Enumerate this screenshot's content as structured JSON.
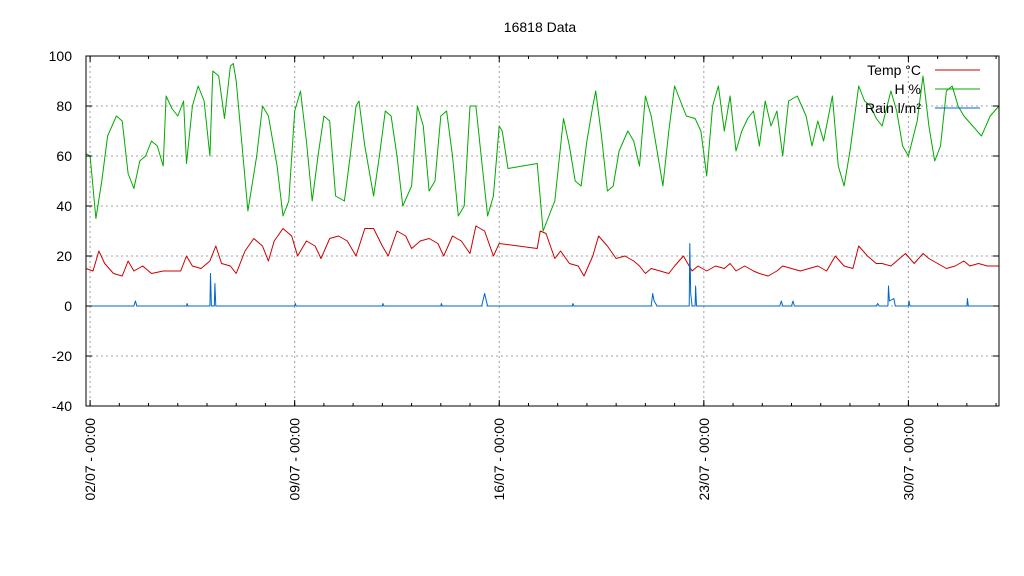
{
  "chart_data": {
    "type": "line",
    "title": "16818 Data",
    "xlabel": "",
    "ylabel": "",
    "ylim": [
      -40,
      100
    ],
    "yticks": [
      -40,
      -20,
      0,
      20,
      40,
      60,
      80,
      100
    ],
    "xlim_days": [
      0.86,
      32.1
    ],
    "xticks": [
      {
        "label": "02/07 - 00:00",
        "day": 1
      },
      {
        "label": "09/07 - 00:00",
        "day": 8
      },
      {
        "label": "16/07 - 00:00",
        "day": 15
      },
      {
        "label": "23/07 - 00:00",
        "day": 22
      },
      {
        "label": "30/07 - 00:00",
        "day": 29
      }
    ],
    "grid": true,
    "legend": "top-right",
    "series": [
      {
        "name": "Temp °C",
        "color": "#cc0000",
        "points": [
          [
            0.86,
            15
          ],
          [
            1.1,
            14
          ],
          [
            1.3,
            22
          ],
          [
            1.5,
            17
          ],
          [
            1.8,
            13
          ],
          [
            2.1,
            12
          ],
          [
            2.3,
            18
          ],
          [
            2.5,
            14
          ],
          [
            2.8,
            16
          ],
          [
            3.1,
            13
          ],
          [
            3.5,
            14
          ],
          [
            4.1,
            14
          ],
          [
            4.3,
            20
          ],
          [
            4.5,
            16
          ],
          [
            4.8,
            15
          ],
          [
            5.1,
            18
          ],
          [
            5.3,
            24
          ],
          [
            5.5,
            17
          ],
          [
            5.8,
            16
          ],
          [
            6.0,
            13
          ],
          [
            6.3,
            22
          ],
          [
            6.6,
            27
          ],
          [
            6.9,
            24
          ],
          [
            7.1,
            18
          ],
          [
            7.3,
            26
          ],
          [
            7.6,
            31
          ],
          [
            7.9,
            28
          ],
          [
            8.1,
            20
          ],
          [
            8.4,
            26
          ],
          [
            8.7,
            24
          ],
          [
            8.9,
            19
          ],
          [
            9.2,
            27
          ],
          [
            9.5,
            28
          ],
          [
            9.8,
            26
          ],
          [
            10.1,
            20
          ],
          [
            10.4,
            31
          ],
          [
            10.7,
            31
          ],
          [
            11.0,
            24
          ],
          [
            11.2,
            20
          ],
          [
            11.5,
            30
          ],
          [
            11.8,
            28
          ],
          [
            12.0,
            23
          ],
          [
            12.3,
            26
          ],
          [
            12.6,
            27
          ],
          [
            12.9,
            25
          ],
          [
            13.1,
            20
          ],
          [
            13.4,
            28
          ],
          [
            13.7,
            26
          ],
          [
            14.0,
            21
          ],
          [
            14.2,
            32
          ],
          [
            14.5,
            30
          ],
          [
            14.8,
            20
          ],
          [
            15.0,
            25
          ],
          [
            16.3,
            23
          ],
          [
            16.4,
            30
          ],
          [
            16.6,
            29
          ],
          [
            16.9,
            19
          ],
          [
            17.1,
            22
          ],
          [
            17.4,
            17
          ],
          [
            17.7,
            16
          ],
          [
            17.9,
            12
          ],
          [
            18.2,
            20
          ],
          [
            18.4,
            28
          ],
          [
            18.7,
            24
          ],
          [
            19.0,
            19
          ],
          [
            19.3,
            20
          ],
          [
            19.6,
            18
          ],
          [
            19.8,
            16
          ],
          [
            20.0,
            13
          ],
          [
            20.2,
            15
          ],
          [
            20.5,
            14
          ],
          [
            20.8,
            13
          ],
          [
            21.0,
            16
          ],
          [
            21.3,
            20
          ],
          [
            21.6,
            14
          ],
          [
            21.8,
            16
          ],
          [
            22.1,
            14
          ],
          [
            22.4,
            16
          ],
          [
            22.7,
            15
          ],
          [
            22.9,
            17
          ],
          [
            23.1,
            14
          ],
          [
            23.4,
            16
          ],
          [
            23.7,
            14
          ],
          [
            23.9,
            13
          ],
          [
            24.2,
            12
          ],
          [
            24.5,
            14
          ],
          [
            24.7,
            16
          ],
          [
            25.0,
            15
          ],
          [
            25.3,
            14
          ],
          [
            25.6,
            15
          ],
          [
            25.9,
            16
          ],
          [
            26.2,
            14
          ],
          [
            26.5,
            20
          ],
          [
            26.8,
            16
          ],
          [
            27.1,
            15
          ],
          [
            27.3,
            24
          ],
          [
            27.6,
            20
          ],
          [
            27.9,
            17
          ],
          [
            28.1,
            17
          ],
          [
            28.4,
            16
          ],
          [
            28.7,
            19
          ],
          [
            28.9,
            21
          ],
          [
            29.2,
            17
          ],
          [
            29.5,
            21
          ],
          [
            29.7,
            19
          ],
          [
            30.0,
            17
          ],
          [
            30.3,
            15
          ],
          [
            30.6,
            16
          ],
          [
            30.9,
            18
          ],
          [
            31.1,
            16
          ],
          [
            31.4,
            17
          ],
          [
            31.7,
            16
          ],
          [
            32.0,
            16
          ],
          [
            32.1,
            16
          ]
        ]
      },
      {
        "name": "H %",
        "color": "#00aa00",
        "points": [
          [
            0.86,
            61
          ],
          [
            1.0,
            60
          ],
          [
            1.2,
            35
          ],
          [
            1.4,
            50
          ],
          [
            1.6,
            68
          ],
          [
            1.9,
            76
          ],
          [
            2.1,
            74
          ],
          [
            2.3,
            53
          ],
          [
            2.5,
            47
          ],
          [
            2.7,
            58
          ],
          [
            2.9,
            60
          ],
          [
            3.1,
            66
          ],
          [
            3.3,
            64
          ],
          [
            3.5,
            56
          ],
          [
            3.6,
            84
          ],
          [
            3.8,
            79
          ],
          [
            4.0,
            76
          ],
          [
            4.2,
            82
          ],
          [
            4.3,
            57
          ],
          [
            4.5,
            80
          ],
          [
            4.7,
            88
          ],
          [
            4.9,
            82
          ],
          [
            5.1,
            60
          ],
          [
            5.2,
            94
          ],
          [
            5.4,
            92
          ],
          [
            5.6,
            75
          ],
          [
            5.8,
            96
          ],
          [
            5.9,
            97
          ],
          [
            6.0,
            90
          ],
          [
            6.2,
            64
          ],
          [
            6.4,
            38
          ],
          [
            6.7,
            60
          ],
          [
            6.9,
            80
          ],
          [
            7.1,
            76
          ],
          [
            7.4,
            56
          ],
          [
            7.6,
            36
          ],
          [
            7.8,
            42
          ],
          [
            8.0,
            78
          ],
          [
            8.2,
            86
          ],
          [
            8.4,
            66
          ],
          [
            8.6,
            42
          ],
          [
            8.8,
            60
          ],
          [
            9.0,
            76
          ],
          [
            9.2,
            74
          ],
          [
            9.4,
            44
          ],
          [
            9.7,
            42
          ],
          [
            9.9,
            60
          ],
          [
            10.1,
            80
          ],
          [
            10.2,
            82
          ],
          [
            10.4,
            64
          ],
          [
            10.7,
            44
          ],
          [
            10.9,
            60
          ],
          [
            11.1,
            78
          ],
          [
            11.3,
            76
          ],
          [
            11.5,
            60
          ],
          [
            11.7,
            40
          ],
          [
            12.0,
            48
          ],
          [
            12.2,
            80
          ],
          [
            12.4,
            72
          ],
          [
            12.6,
            46
          ],
          [
            12.8,
            50
          ],
          [
            13.0,
            76
          ],
          [
            13.2,
            78
          ],
          [
            13.4,
            60
          ],
          [
            13.6,
            36
          ],
          [
            13.8,
            40
          ],
          [
            14.0,
            80
          ],
          [
            14.2,
            80
          ],
          [
            14.4,
            58
          ],
          [
            14.6,
            36
          ],
          [
            14.8,
            44
          ],
          [
            15.0,
            72
          ],
          [
            15.1,
            70
          ],
          [
            15.3,
            55
          ],
          [
            16.3,
            57
          ],
          [
            16.5,
            30
          ],
          [
            16.7,
            36
          ],
          [
            16.9,
            42
          ],
          [
            17.2,
            75
          ],
          [
            17.4,
            64
          ],
          [
            17.6,
            50
          ],
          [
            17.8,
            48
          ],
          [
            18.0,
            66
          ],
          [
            18.2,
            80
          ],
          [
            18.3,
            86
          ],
          [
            18.5,
            68
          ],
          [
            18.7,
            46
          ],
          [
            18.9,
            48
          ],
          [
            19.1,
            62
          ],
          [
            19.4,
            70
          ],
          [
            19.6,
            66
          ],
          [
            19.8,
            56
          ],
          [
            20.0,
            84
          ],
          [
            20.2,
            76
          ],
          [
            20.4,
            62
          ],
          [
            20.6,
            48
          ],
          [
            20.8,
            70
          ],
          [
            21.0,
            88
          ],
          [
            21.2,
            82
          ],
          [
            21.4,
            76
          ],
          [
            21.7,
            75
          ],
          [
            21.9,
            70
          ],
          [
            22.1,
            52
          ],
          [
            22.3,
            80
          ],
          [
            22.5,
            88
          ],
          [
            22.7,
            70
          ],
          [
            22.9,
            84
          ],
          [
            23.1,
            62
          ],
          [
            23.3,
            70
          ],
          [
            23.5,
            75
          ],
          [
            23.7,
            78
          ],
          [
            23.9,
            64
          ],
          [
            24.1,
            82
          ],
          [
            24.3,
            72
          ],
          [
            24.5,
            78
          ],
          [
            24.7,
            60
          ],
          [
            24.9,
            82
          ],
          [
            25.2,
            84
          ],
          [
            25.5,
            76
          ],
          [
            25.7,
            64
          ],
          [
            25.9,
            74
          ],
          [
            26.1,
            66
          ],
          [
            26.4,
            84
          ],
          [
            26.6,
            56
          ],
          [
            26.8,
            48
          ],
          [
            27.0,
            62
          ],
          [
            27.3,
            88
          ],
          [
            27.5,
            82
          ],
          [
            27.7,
            80
          ],
          [
            27.9,
            75
          ],
          [
            28.1,
            72
          ],
          [
            28.4,
            86
          ],
          [
            28.6,
            78
          ],
          [
            28.8,
            64
          ],
          [
            29.0,
            60
          ],
          [
            29.3,
            74
          ],
          [
            29.5,
            92
          ],
          [
            29.7,
            72
          ],
          [
            29.9,
            58
          ],
          [
            30.1,
            64
          ],
          [
            30.3,
            86
          ],
          [
            30.5,
            88
          ],
          [
            30.7,
            80
          ],
          [
            30.9,
            76
          ],
          [
            31.2,
            72
          ],
          [
            31.5,
            68
          ],
          [
            31.8,
            76
          ],
          [
            32.1,
            80
          ]
        ]
      },
      {
        "name": "Rain l/m²",
        "color": "#0066cc",
        "points": [
          [
            0.86,
            0
          ],
          [
            2.5,
            0
          ],
          [
            2.55,
            2
          ],
          [
            2.6,
            0
          ],
          [
            4.3,
            0
          ],
          [
            4.32,
            1
          ],
          [
            4.35,
            0
          ],
          [
            5.1,
            0
          ],
          [
            5.12,
            13
          ],
          [
            5.15,
            0
          ],
          [
            5.25,
            0
          ],
          [
            5.27,
            9
          ],
          [
            5.3,
            0
          ],
          [
            8.0,
            0
          ],
          [
            8.02,
            1
          ],
          [
            8.05,
            0
          ],
          [
            11.0,
            0
          ],
          [
            11.02,
            1
          ],
          [
            11.05,
            0
          ],
          [
            13.0,
            0
          ],
          [
            13.02,
            1
          ],
          [
            13.05,
            0
          ],
          [
            14.4,
            0
          ],
          [
            14.5,
            5
          ],
          [
            14.6,
            0
          ],
          [
            17.5,
            0
          ],
          [
            17.52,
            1
          ],
          [
            17.55,
            0
          ],
          [
            20.2,
            0
          ],
          [
            20.25,
            5
          ],
          [
            20.3,
            2
          ],
          [
            20.4,
            0
          ],
          [
            21.5,
            0
          ],
          [
            21.52,
            25
          ],
          [
            21.55,
            5
          ],
          [
            21.6,
            0
          ],
          [
            21.7,
            0
          ],
          [
            21.72,
            8
          ],
          [
            21.75,
            0
          ],
          [
            24.6,
            0
          ],
          [
            24.65,
            2
          ],
          [
            24.7,
            0
          ],
          [
            25.0,
            0
          ],
          [
            25.05,
            2
          ],
          [
            25.1,
            0
          ],
          [
            27.9,
            0
          ],
          [
            27.95,
            1
          ],
          [
            28.0,
            0
          ],
          [
            28.3,
            0
          ],
          [
            28.32,
            8
          ],
          [
            28.35,
            2
          ],
          [
            28.5,
            3
          ],
          [
            28.55,
            0
          ],
          [
            29.0,
            0
          ],
          [
            29.02,
            2
          ],
          [
            29.05,
            0
          ],
          [
            31.0,
            0
          ],
          [
            31.02,
            3
          ],
          [
            31.05,
            0
          ],
          [
            32.1,
            0
          ]
        ]
      }
    ]
  }
}
